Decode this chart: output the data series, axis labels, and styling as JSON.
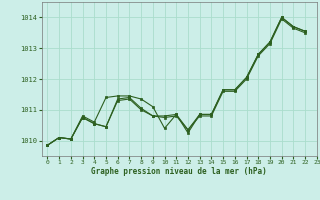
{
  "title": "Graphe pression niveau de la mer (hPa)",
  "bg_color": "#cceee8",
  "grid_color": "#aaddcc",
  "line_color": "#2d6020",
  "xlim": [
    -0.5,
    23
  ],
  "ylim": [
    1009.5,
    1014.5
  ],
  "yticks": [
    1010,
    1011,
    1012,
    1013,
    1014
  ],
  "xticks": [
    0,
    1,
    2,
    3,
    4,
    5,
    6,
    7,
    8,
    9,
    10,
    11,
    12,
    13,
    14,
    15,
    16,
    17,
    18,
    19,
    20,
    21,
    22,
    23
  ],
  "curve1_x": [
    0,
    1,
    2,
    3,
    4,
    5,
    6,
    7,
    8,
    9,
    10,
    11,
    12,
    13,
    14,
    15,
    16,
    17,
    18,
    19,
    20,
    21,
    22
  ],
  "curve1_y": [
    1009.85,
    1010.1,
    1010.05,
    1010.75,
    1010.55,
    1010.45,
    1011.35,
    1011.4,
    1011.05,
    1010.8,
    1010.8,
    1010.85,
    1010.35,
    1010.85,
    1010.85,
    1011.65,
    1011.65,
    1012.05,
    1012.8,
    1013.2,
    1014.0,
    1013.7,
    1013.55
  ],
  "curve2_x": [
    0,
    1,
    2,
    3,
    4,
    5,
    6,
    7,
    8,
    9,
    10,
    11,
    12,
    13,
    14,
    15,
    16,
    17,
    18,
    19,
    20,
    21,
    22
  ],
  "curve2_y": [
    1009.85,
    1010.1,
    1010.05,
    1010.8,
    1010.6,
    1011.4,
    1011.45,
    1011.45,
    1011.35,
    1011.1,
    1010.4,
    1010.85,
    1010.25,
    1010.85,
    1010.85,
    1011.65,
    1011.65,
    1012.05,
    1012.8,
    1013.2,
    1014.0,
    1013.7,
    1013.55
  ],
  "curve3_x": [
    0,
    1,
    2,
    3,
    4,
    5,
    6,
    7,
    8,
    9,
    10,
    11,
    12,
    13,
    14,
    15,
    16,
    17,
    18,
    19,
    20,
    21,
    22
  ],
  "curve3_y": [
    1009.85,
    1010.1,
    1010.05,
    1010.75,
    1010.55,
    1010.45,
    1011.3,
    1011.35,
    1011.0,
    1010.8,
    1010.75,
    1010.8,
    1010.35,
    1010.8,
    1010.8,
    1011.6,
    1011.6,
    1012.0,
    1012.75,
    1013.15,
    1013.95,
    1013.65,
    1013.5
  ]
}
